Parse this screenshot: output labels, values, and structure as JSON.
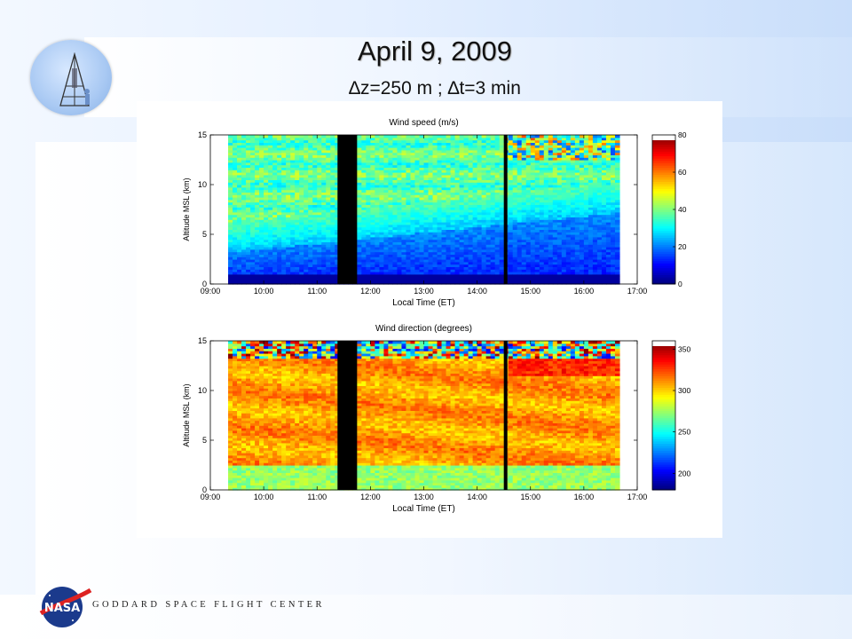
{
  "slide": {
    "title": "April 9, 2009",
    "subtitle": "∆z=250 m ; ∆t=3 min",
    "footer": "GODDARD SPACE FLIGHT CENTER"
  },
  "chart_data": [
    {
      "type": "heatmap",
      "title": "Wind speed (m/s)",
      "xlabel": "Local Time (ET)",
      "ylabel": "Altitude MSL (km)",
      "x_ticks": [
        "09:00",
        "10:00",
        "11:00",
        "12:00",
        "13:00",
        "14:00",
        "15:00",
        "16:00",
        "17:00"
      ],
      "y_ticks": [
        "0",
        "5",
        "10",
        "15"
      ],
      "xlim": [
        "09:00",
        "17:00"
      ],
      "ylim": [
        0,
        15
      ],
      "data_range": [
        "09:20",
        "16:40"
      ],
      "gaps": [
        [
          "11:23",
          "11:45"
        ],
        [
          "14:30",
          "14:34"
        ]
      ],
      "colorbar": {
        "ticks": [
          "0",
          "20",
          "40",
          "60",
          "80"
        ],
        "range": [
          0,
          80
        ]
      },
      "colormap": "jet"
    },
    {
      "type": "heatmap",
      "title": "Wind direction (degrees)",
      "xlabel": "Local Time (ET)",
      "ylabel": "Altitude MSL (km)",
      "x_ticks": [
        "09:00",
        "10:00",
        "11:00",
        "12:00",
        "13:00",
        "14:00",
        "15:00",
        "16:00",
        "17:00"
      ],
      "y_ticks": [
        "0",
        "5",
        "10",
        "15"
      ],
      "xlim": [
        "09:00",
        "17:00"
      ],
      "ylim": [
        0,
        15
      ],
      "data_range": [
        "09:20",
        "16:40"
      ],
      "gaps": [
        [
          "11:23",
          "11:45"
        ],
        [
          "14:30",
          "14:34"
        ]
      ],
      "colorbar": {
        "ticks": [
          "200",
          "250",
          "300",
          "350"
        ],
        "range": [
          180,
          360
        ]
      },
      "colormap": "jet"
    }
  ]
}
